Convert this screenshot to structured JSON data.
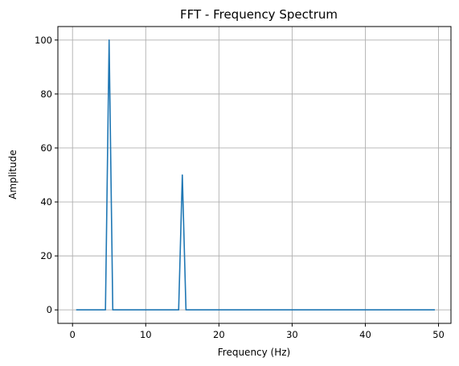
{
  "chart_data": {
    "type": "line",
    "title": "FFT - Frequency Spectrum",
    "xlabel": "Frequency (Hz)",
    "ylabel": "Amplitude",
    "xlim": [
      -2.0,
      51.7
    ],
    "ylim": [
      -5,
      105
    ],
    "xticks": [
      0,
      10,
      20,
      30,
      40,
      50
    ],
    "yticks": [
      0,
      20,
      40,
      60,
      80,
      100
    ],
    "grid": true,
    "series": [
      {
        "color": "#1f77b4",
        "x": [
          0.5,
          4.5,
          5.0,
          5.5,
          14.5,
          15.0,
          15.5,
          49.5
        ],
        "y": [
          0,
          0,
          100,
          0,
          0,
          50,
          0,
          0
        ]
      }
    ]
  }
}
